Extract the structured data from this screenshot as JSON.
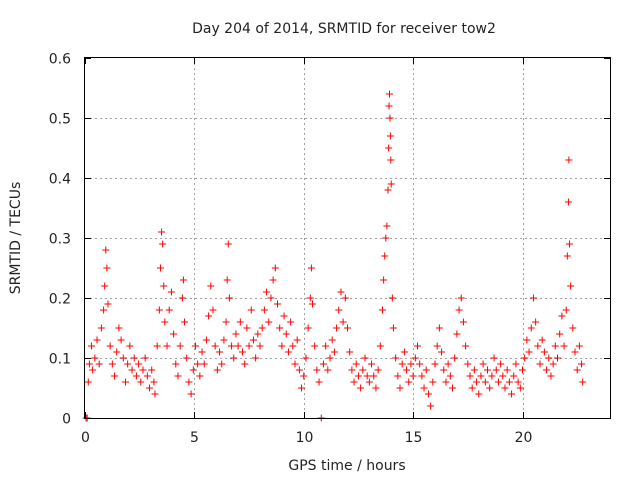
{
  "chart_data": {
    "type": "scatter",
    "title": "Day 204 of 2014, SRMTID for receiver tow2",
    "xlabel": "GPS time / hours",
    "ylabel": "SRMTID / TECUs",
    "xlim": [
      0,
      24
    ],
    "ylim": [
      0,
      0.6
    ],
    "xticks": [
      0,
      5,
      10,
      15,
      20
    ],
    "xtick_labels": [
      "0",
      "5",
      "10",
      "15",
      "20"
    ],
    "yticks": [
      0,
      0.1,
      0.2,
      0.3,
      0.4,
      0.5,
      0.6
    ],
    "ytick_labels": [
      "0",
      "0.1",
      "0.2",
      "0.3",
      "0.4",
      "0.5",
      "0.6"
    ],
    "grid": true,
    "marker": "+",
    "color": "#ff0000",
    "series": [
      {
        "name": "SRMTID",
        "points": [
          [
            0.05,
            0.0
          ],
          [
            0.1,
            0.0
          ],
          [
            0.15,
            0.06
          ],
          [
            0.2,
            0.09
          ],
          [
            0.3,
            0.12
          ],
          [
            0.35,
            0.08
          ],
          [
            0.45,
            0.1
          ],
          [
            0.55,
            0.13
          ],
          [
            0.65,
            0.09
          ],
          [
            0.75,
            0.15
          ],
          [
            0.85,
            0.18
          ],
          [
            0.9,
            0.22
          ],
          [
            0.95,
            0.28
          ],
          [
            1.0,
            0.25
          ],
          [
            1.05,
            0.19
          ],
          [
            1.15,
            0.12
          ],
          [
            1.25,
            0.09
          ],
          [
            1.35,
            0.07
          ],
          [
            1.45,
            0.11
          ],
          [
            1.55,
            0.15
          ],
          [
            1.65,
            0.13
          ],
          [
            1.75,
            0.1
          ],
          [
            1.85,
            0.06
          ],
          [
            1.95,
            0.09
          ],
          [
            2.05,
            0.12
          ],
          [
            2.15,
            0.08
          ],
          [
            2.25,
            0.1
          ],
          [
            2.35,
            0.07
          ],
          [
            2.45,
            0.09
          ],
          [
            2.55,
            0.06
          ],
          [
            2.65,
            0.08
          ],
          [
            2.75,
            0.1
          ],
          [
            2.85,
            0.07
          ],
          [
            2.95,
            0.05
          ],
          [
            3.05,
            0.08
          ],
          [
            3.15,
            0.06
          ],
          [
            3.2,
            0.04
          ],
          [
            3.3,
            0.12
          ],
          [
            3.4,
            0.18
          ],
          [
            3.45,
            0.25
          ],
          [
            3.5,
            0.31
          ],
          [
            3.55,
            0.29
          ],
          [
            3.6,
            0.22
          ],
          [
            3.65,
            0.16
          ],
          [
            3.75,
            0.12
          ],
          [
            3.85,
            0.18
          ],
          [
            3.95,
            0.21
          ],
          [
            4.05,
            0.14
          ],
          [
            4.15,
            0.09
          ],
          [
            4.25,
            0.07
          ],
          [
            4.35,
            0.12
          ],
          [
            4.45,
            0.2
          ],
          [
            4.5,
            0.23
          ],
          [
            4.55,
            0.16
          ],
          [
            4.65,
            0.1
          ],
          [
            4.75,
            0.06
          ],
          [
            4.85,
            0.04
          ],
          [
            4.95,
            0.08
          ],
          [
            5.05,
            0.12
          ],
          [
            5.15,
            0.09
          ],
          [
            5.25,
            0.07
          ],
          [
            5.35,
            0.11
          ],
          [
            5.45,
            0.09
          ],
          [
            5.55,
            0.13
          ],
          [
            5.65,
            0.17
          ],
          [
            5.75,
            0.22
          ],
          [
            5.85,
            0.18
          ],
          [
            5.95,
            0.12
          ],
          [
            6.05,
            0.08
          ],
          [
            6.15,
            0.11
          ],
          [
            6.25,
            0.09
          ],
          [
            6.35,
            0.13
          ],
          [
            6.45,
            0.16
          ],
          [
            6.5,
            0.23
          ],
          [
            6.55,
            0.29
          ],
          [
            6.6,
            0.2
          ],
          [
            6.7,
            0.12
          ],
          [
            6.8,
            0.1
          ],
          [
            6.9,
            0.14
          ],
          [
            7.0,
            0.12
          ],
          [
            7.1,
            0.16
          ],
          [
            7.2,
            0.11
          ],
          [
            7.3,
            0.09
          ],
          [
            7.4,
            0.15
          ],
          [
            7.5,
            0.12
          ],
          [
            7.6,
            0.18
          ],
          [
            7.7,
            0.13
          ],
          [
            7.8,
            0.1
          ],
          [
            7.9,
            0.14
          ],
          [
            8.0,
            0.12
          ],
          [
            8.1,
            0.15
          ],
          [
            8.2,
            0.18
          ],
          [
            8.3,
            0.21
          ],
          [
            8.4,
            0.16
          ],
          [
            8.5,
            0.2
          ],
          [
            8.6,
            0.23
          ],
          [
            8.7,
            0.25
          ],
          [
            8.8,
            0.19
          ],
          [
            8.9,
            0.15
          ],
          [
            9.0,
            0.12
          ],
          [
            9.1,
            0.17
          ],
          [
            9.2,
            0.14
          ],
          [
            9.3,
            0.11
          ],
          [
            9.4,
            0.16
          ],
          [
            9.5,
            0.12
          ],
          [
            9.6,
            0.09
          ],
          [
            9.7,
            0.13
          ],
          [
            9.8,
            0.08
          ],
          [
            9.9,
            0.05
          ],
          [
            10.0,
            0.07
          ],
          [
            10.1,
            0.1
          ],
          [
            10.2,
            0.15
          ],
          [
            10.3,
            0.2
          ],
          [
            10.35,
            0.25
          ],
          [
            10.4,
            0.19
          ],
          [
            10.5,
            0.12
          ],
          [
            10.6,
            0.08
          ],
          [
            10.7,
            0.06
          ],
          [
            10.8,
            0.0
          ],
          [
            10.9,
            0.09
          ],
          [
            11.0,
            0.12
          ],
          [
            11.1,
            0.08
          ],
          [
            11.2,
            0.1
          ],
          [
            11.3,
            0.13
          ],
          [
            11.4,
            0.11
          ],
          [
            11.5,
            0.15
          ],
          [
            11.6,
            0.18
          ],
          [
            11.7,
            0.21
          ],
          [
            11.8,
            0.16
          ],
          [
            11.9,
            0.2
          ],
          [
            12.0,
            0.15
          ],
          [
            12.1,
            0.11
          ],
          [
            12.2,
            0.08
          ],
          [
            12.3,
            0.06
          ],
          [
            12.4,
            0.09
          ],
          [
            12.5,
            0.07
          ],
          [
            12.6,
            0.05
          ],
          [
            12.7,
            0.08
          ],
          [
            12.8,
            0.1
          ],
          [
            12.9,
            0.07
          ],
          [
            13.0,
            0.06
          ],
          [
            13.1,
            0.09
          ],
          [
            13.2,
            0.07
          ],
          [
            13.3,
            0.05
          ],
          [
            13.4,
            0.08
          ],
          [
            13.5,
            0.12
          ],
          [
            13.6,
            0.18
          ],
          [
            13.65,
            0.23
          ],
          [
            13.7,
            0.27
          ],
          [
            13.75,
            0.3
          ],
          [
            13.8,
            0.32
          ],
          [
            13.85,
            0.38
          ],
          [
            13.88,
            0.45
          ],
          [
            13.9,
            0.52
          ],
          [
            13.92,
            0.54
          ],
          [
            13.94,
            0.5
          ],
          [
            13.96,
            0.47
          ],
          [
            13.98,
            0.43
          ],
          [
            14.0,
            0.39
          ],
          [
            14.05,
            0.2
          ],
          [
            14.1,
            0.15
          ],
          [
            14.2,
            0.1
          ],
          [
            14.3,
            0.07
          ],
          [
            14.4,
            0.05
          ],
          [
            14.5,
            0.09
          ],
          [
            14.6,
            0.11
          ],
          [
            14.7,
            0.08
          ],
          [
            14.8,
            0.06
          ],
          [
            14.9,
            0.09
          ],
          [
            15.0,
            0.07
          ],
          [
            15.1,
            0.1
          ],
          [
            15.2,
            0.12
          ],
          [
            15.3,
            0.09
          ],
          [
            15.4,
            0.07
          ],
          [
            15.5,
            0.05
          ],
          [
            15.6,
            0.08
          ],
          [
            15.7,
            0.04
          ],
          [
            15.8,
            0.02
          ],
          [
            15.9,
            0.06
          ],
          [
            16.0,
            0.09
          ],
          [
            16.1,
            0.12
          ],
          [
            16.2,
            0.15
          ],
          [
            16.3,
            0.11
          ],
          [
            16.4,
            0.08
          ],
          [
            16.5,
            0.06
          ],
          [
            16.6,
            0.09
          ],
          [
            16.7,
            0.07
          ],
          [
            16.8,
            0.05
          ],
          [
            16.9,
            0.1
          ],
          [
            17.0,
            0.14
          ],
          [
            17.1,
            0.18
          ],
          [
            17.2,
            0.2
          ],
          [
            17.3,
            0.16
          ],
          [
            17.4,
            0.12
          ],
          [
            17.5,
            0.09
          ],
          [
            17.6,
            0.07
          ],
          [
            17.7,
            0.05
          ],
          [
            17.8,
            0.08
          ],
          [
            17.9,
            0.06
          ],
          [
            18.0,
            0.04
          ],
          [
            18.1,
            0.07
          ],
          [
            18.2,
            0.09
          ],
          [
            18.3,
            0.06
          ],
          [
            18.4,
            0.08
          ],
          [
            18.5,
            0.05
          ],
          [
            18.6,
            0.07
          ],
          [
            18.7,
            0.1
          ],
          [
            18.8,
            0.08
          ],
          [
            18.9,
            0.06
          ],
          [
            19.0,
            0.09
          ],
          [
            19.1,
            0.07
          ],
          [
            19.2,
            0.05
          ],
          [
            19.3,
            0.08
          ],
          [
            19.4,
            0.06
          ],
          [
            19.5,
            0.04
          ],
          [
            19.6,
            0.07
          ],
          [
            19.7,
            0.09
          ],
          [
            19.8,
            0.06
          ],
          [
            19.9,
            0.05
          ],
          [
            20.0,
            0.08
          ],
          [
            20.1,
            0.1
          ],
          [
            20.2,
            0.13
          ],
          [
            20.3,
            0.11
          ],
          [
            20.4,
            0.15
          ],
          [
            20.5,
            0.2
          ],
          [
            20.6,
            0.16
          ],
          [
            20.7,
            0.12
          ],
          [
            20.8,
            0.09
          ],
          [
            20.9,
            0.13
          ],
          [
            21.0,
            0.11
          ],
          [
            21.1,
            0.08
          ],
          [
            21.2,
            0.1
          ],
          [
            21.3,
            0.07
          ],
          [
            21.4,
            0.09
          ],
          [
            21.5,
            0.12
          ],
          [
            21.6,
            0.1
          ],
          [
            21.7,
            0.14
          ],
          [
            21.8,
            0.17
          ],
          [
            21.9,
            0.12
          ],
          [
            22.0,
            0.18
          ],
          [
            22.05,
            0.27
          ],
          [
            22.1,
            0.36
          ],
          [
            22.12,
            0.43
          ],
          [
            22.15,
            0.29
          ],
          [
            22.2,
            0.22
          ],
          [
            22.3,
            0.15
          ],
          [
            22.4,
            0.11
          ],
          [
            22.5,
            0.08
          ],
          [
            22.6,
            0.12
          ],
          [
            22.7,
            0.09
          ],
          [
            22.75,
            0.06
          ]
        ]
      }
    ]
  }
}
